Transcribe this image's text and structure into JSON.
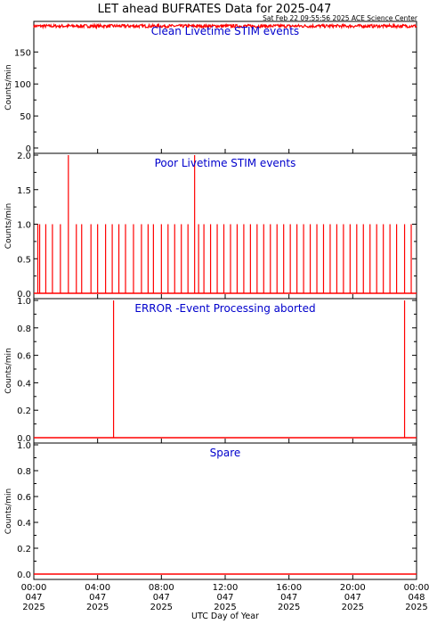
{
  "header": {
    "title": "LET ahead BUFRATES Data for 2025-047",
    "generated": "Sat Feb 22 09:55:56 2025 ACE Science Center"
  },
  "colors": {
    "data": "#ff0000",
    "panel_title": "#0000cc",
    "axes": "#000000"
  },
  "chart_data": [
    {
      "type": "line",
      "title": "Clean Livetime STIM events",
      "ylabel": "Counts/min",
      "ylim": [
        0,
        195
      ],
      "yticks": [
        "0",
        "50",
        "100",
        "150"
      ],
      "ytick_values": [
        0,
        50,
        100,
        150
      ],
      "series": [
        {
          "pattern": "noise",
          "values": [
            188,
            193
          ]
        }
      ]
    },
    {
      "type": "line",
      "title": "Poor Livetime STIM events",
      "ylabel": "Counts/min",
      "ylim": [
        0,
        2
      ],
      "yticks": [
        "0.0",
        "0.5",
        "1.0",
        "1.5",
        "2.0"
      ],
      "ytick_values": [
        0,
        0.5,
        1.0,
        1.5,
        2.0
      ],
      "series": [
        {
          "pattern": "spikes",
          "values_at_minutes": [
            {
              "x": 15,
              "y": 1
            },
            {
              "x": 22,
              "y": 1
            },
            {
              "x": 45,
              "y": 1
            },
            {
              "x": 70,
              "y": 1
            },
            {
              "x": 100,
              "y": 1
            },
            {
              "x": 130,
              "y": 2
            },
            {
              "x": 160,
              "y": 1
            },
            {
              "x": 180,
              "y": 1
            },
            {
              "x": 215,
              "y": 1
            },
            {
              "x": 240,
              "y": 1
            },
            {
              "x": 270,
              "y": 1
            },
            {
              "x": 295,
              "y": 1
            },
            {
              "x": 320,
              "y": 1
            },
            {
              "x": 345,
              "y": 1
            },
            {
              "x": 375,
              "y": 1
            },
            {
              "x": 405,
              "y": 1
            },
            {
              "x": 430,
              "y": 1
            },
            {
              "x": 450,
              "y": 1
            },
            {
              "x": 480,
              "y": 1
            },
            {
              "x": 505,
              "y": 1
            },
            {
              "x": 530,
              "y": 1
            },
            {
              "x": 555,
              "y": 1
            },
            {
              "x": 580,
              "y": 1
            },
            {
              "x": 605,
              "y": 2
            },
            {
              "x": 620,
              "y": 1
            },
            {
              "x": 640,
              "y": 1
            },
            {
              "x": 665,
              "y": 1
            },
            {
              "x": 690,
              "y": 1
            },
            {
              "x": 715,
              "y": 1
            },
            {
              "x": 740,
              "y": 1
            },
            {
              "x": 765,
              "y": 1
            },
            {
              "x": 790,
              "y": 1
            },
            {
              "x": 815,
              "y": 1
            },
            {
              "x": 840,
              "y": 1
            },
            {
              "x": 865,
              "y": 1
            },
            {
              "x": 890,
              "y": 1
            },
            {
              "x": 915,
              "y": 1
            },
            {
              "x": 940,
              "y": 1
            },
            {
              "x": 965,
              "y": 1
            },
            {
              "x": 990,
              "y": 1
            },
            {
              "x": 1015,
              "y": 1
            },
            {
              "x": 1040,
              "y": 1
            },
            {
              "x": 1065,
              "y": 1
            },
            {
              "x": 1090,
              "y": 1
            },
            {
              "x": 1115,
              "y": 1
            },
            {
              "x": 1140,
              "y": 1
            },
            {
              "x": 1165,
              "y": 1
            },
            {
              "x": 1190,
              "y": 1
            },
            {
              "x": 1215,
              "y": 1
            },
            {
              "x": 1240,
              "y": 1
            },
            {
              "x": 1265,
              "y": 1
            },
            {
              "x": 1290,
              "y": 1
            },
            {
              "x": 1315,
              "y": 1
            },
            {
              "x": 1340,
              "y": 1
            },
            {
              "x": 1365,
              "y": 1
            },
            {
              "x": 1395,
              "y": 1
            },
            {
              "x": 1420,
              "y": 1
            }
          ]
        }
      ]
    },
    {
      "type": "line",
      "title": "ERROR -Event Processing aborted",
      "ylabel": "Counts/min",
      "ylim": [
        0,
        1
      ],
      "yticks": [
        "0.0",
        "0.2",
        "0.4",
        "0.6",
        "0.8",
        "1.0"
      ],
      "ytick_values": [
        0,
        0.2,
        0.4,
        0.6,
        0.8,
        1.0
      ],
      "series": [
        {
          "pattern": "spikes",
          "values_at_minutes": [
            {
              "x": 300,
              "y": 1
            },
            {
              "x": 1395,
              "y": 1
            }
          ]
        }
      ]
    },
    {
      "type": "line",
      "title": "Spare",
      "ylabel": "Counts/min",
      "ylim": [
        0,
        1
      ],
      "yticks": [
        "0.0",
        "0.2",
        "0.4",
        "0.6",
        "0.8",
        "1.0"
      ],
      "ytick_values": [
        0,
        0.2,
        0.4,
        0.6,
        0.8,
        1.0
      ],
      "series": [
        {
          "pattern": "zero",
          "values_at_minutes": []
        }
      ]
    }
  ],
  "x_axis": {
    "label": "UTC Day of Year",
    "xlim_minutes": [
      0,
      1440
    ],
    "ticks": [
      {
        "minute": 0,
        "time": "00:00",
        "doy": "047",
        "year": "2025"
      },
      {
        "minute": 240,
        "time": "04:00",
        "doy": "047",
        "year": "2025"
      },
      {
        "minute": 480,
        "time": "08:00",
        "doy": "047",
        "year": "2025"
      },
      {
        "minute": 720,
        "time": "12:00",
        "doy": "047",
        "year": "2025"
      },
      {
        "minute": 960,
        "time": "16:00",
        "doy": "047",
        "year": "2025"
      },
      {
        "minute": 1200,
        "time": "20:00",
        "doy": "047",
        "year": "2025"
      },
      {
        "minute": 1440,
        "time": "00:00",
        "doy": "048",
        "year": "2025"
      }
    ]
  }
}
